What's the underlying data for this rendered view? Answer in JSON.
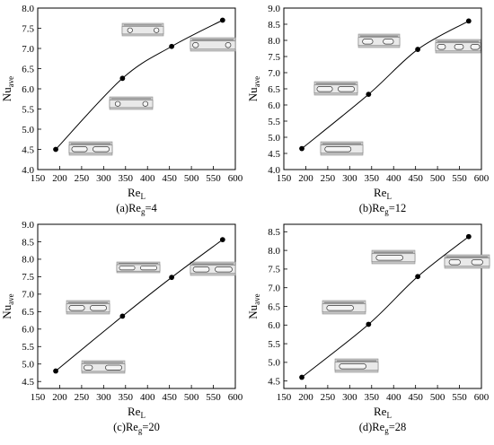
{
  "chart_data": [
    {
      "type": "line",
      "caption": "(a)Re",
      "caption_sub": "g",
      "caption_tail": "=4",
      "xlabel": "Re",
      "xlabel_sub": "L",
      "ylabel": "Nu",
      "ylabel_sub": "ave",
      "xlim": [
        150,
        600
      ],
      "ylim": [
        4.0,
        8.0
      ],
      "xticks": [
        "150",
        "200",
        "250",
        "300",
        "350",
        "400",
        "450",
        "500",
        "550",
        "600"
      ],
      "yticks": [
        "4.0",
        "4.5",
        "5.0",
        "5.5",
        "6.0",
        "6.5",
        "7.0",
        "7.5",
        "8.0"
      ],
      "x": [
        191,
        343,
        455,
        571
      ],
      "y": [
        4.5,
        6.26,
        7.05,
        7.7
      ]
    },
    {
      "type": "line",
      "caption": "(b)Re",
      "caption_sub": "g",
      "caption_tail": "=12",
      "xlabel": "Re",
      "xlabel_sub": "L",
      "ylabel": "Nu",
      "ylabel_sub": "ave",
      "xlim": [
        150,
        600
      ],
      "ylim": [
        4.0,
        9.0
      ],
      "xticks": [
        "150",
        "200",
        "250",
        "300",
        "350",
        "400",
        "450",
        "500",
        "550",
        "600"
      ],
      "yticks": [
        "4.0",
        "4.5",
        "5.0",
        "5.5",
        "6.0",
        "6.5",
        "7.0",
        "7.5",
        "8.0",
        "8.5",
        "9.0"
      ],
      "x": [
        191,
        343,
        455,
        571
      ],
      "y": [
        4.65,
        6.33,
        7.72,
        8.6
      ]
    },
    {
      "type": "line",
      "caption": "(c)Re",
      "caption_sub": "g",
      "caption_tail": "=20",
      "xlabel": "Re",
      "xlabel_sub": "L",
      "ylabel": "Nu",
      "ylabel_sub": "ave",
      "xlim": [
        150,
        600
      ],
      "ylim": [
        4.3,
        9.0
      ],
      "xticks": [
        "150",
        "200",
        "250",
        "300",
        "350",
        "400",
        "450",
        "500",
        "550",
        "600"
      ],
      "yticks": [
        "4.5",
        "5.0",
        "5.5",
        "6.0",
        "6.5",
        "7.0",
        "7.5",
        "8.0",
        "8.5",
        "9.0"
      ],
      "x": [
        191,
        343,
        455,
        571
      ],
      "y": [
        4.8,
        6.37,
        7.48,
        8.56
      ]
    },
    {
      "type": "line",
      "caption": "(d)Re",
      "caption_sub": "g",
      "caption_tail": "=28",
      "xlabel": "Re",
      "xlabel_sub": "L",
      "ylabel": "Nu",
      "ylabel_sub": "ave",
      "xlim": [
        150,
        600
      ],
      "ylim": [
        4.3,
        8.7
      ],
      "xticks": [
        "150",
        "200",
        "250",
        "300",
        "350",
        "400",
        "450",
        "500",
        "550",
        "600"
      ],
      "yticks": [
        "4.5",
        "5.0",
        "5.5",
        "6.0",
        "6.5",
        "7.0",
        "7.5",
        "8.0",
        "8.5"
      ],
      "x": [
        191,
        343,
        455,
        571
      ],
      "y": [
        4.6,
        6.02,
        7.3,
        8.37
      ]
    }
  ]
}
